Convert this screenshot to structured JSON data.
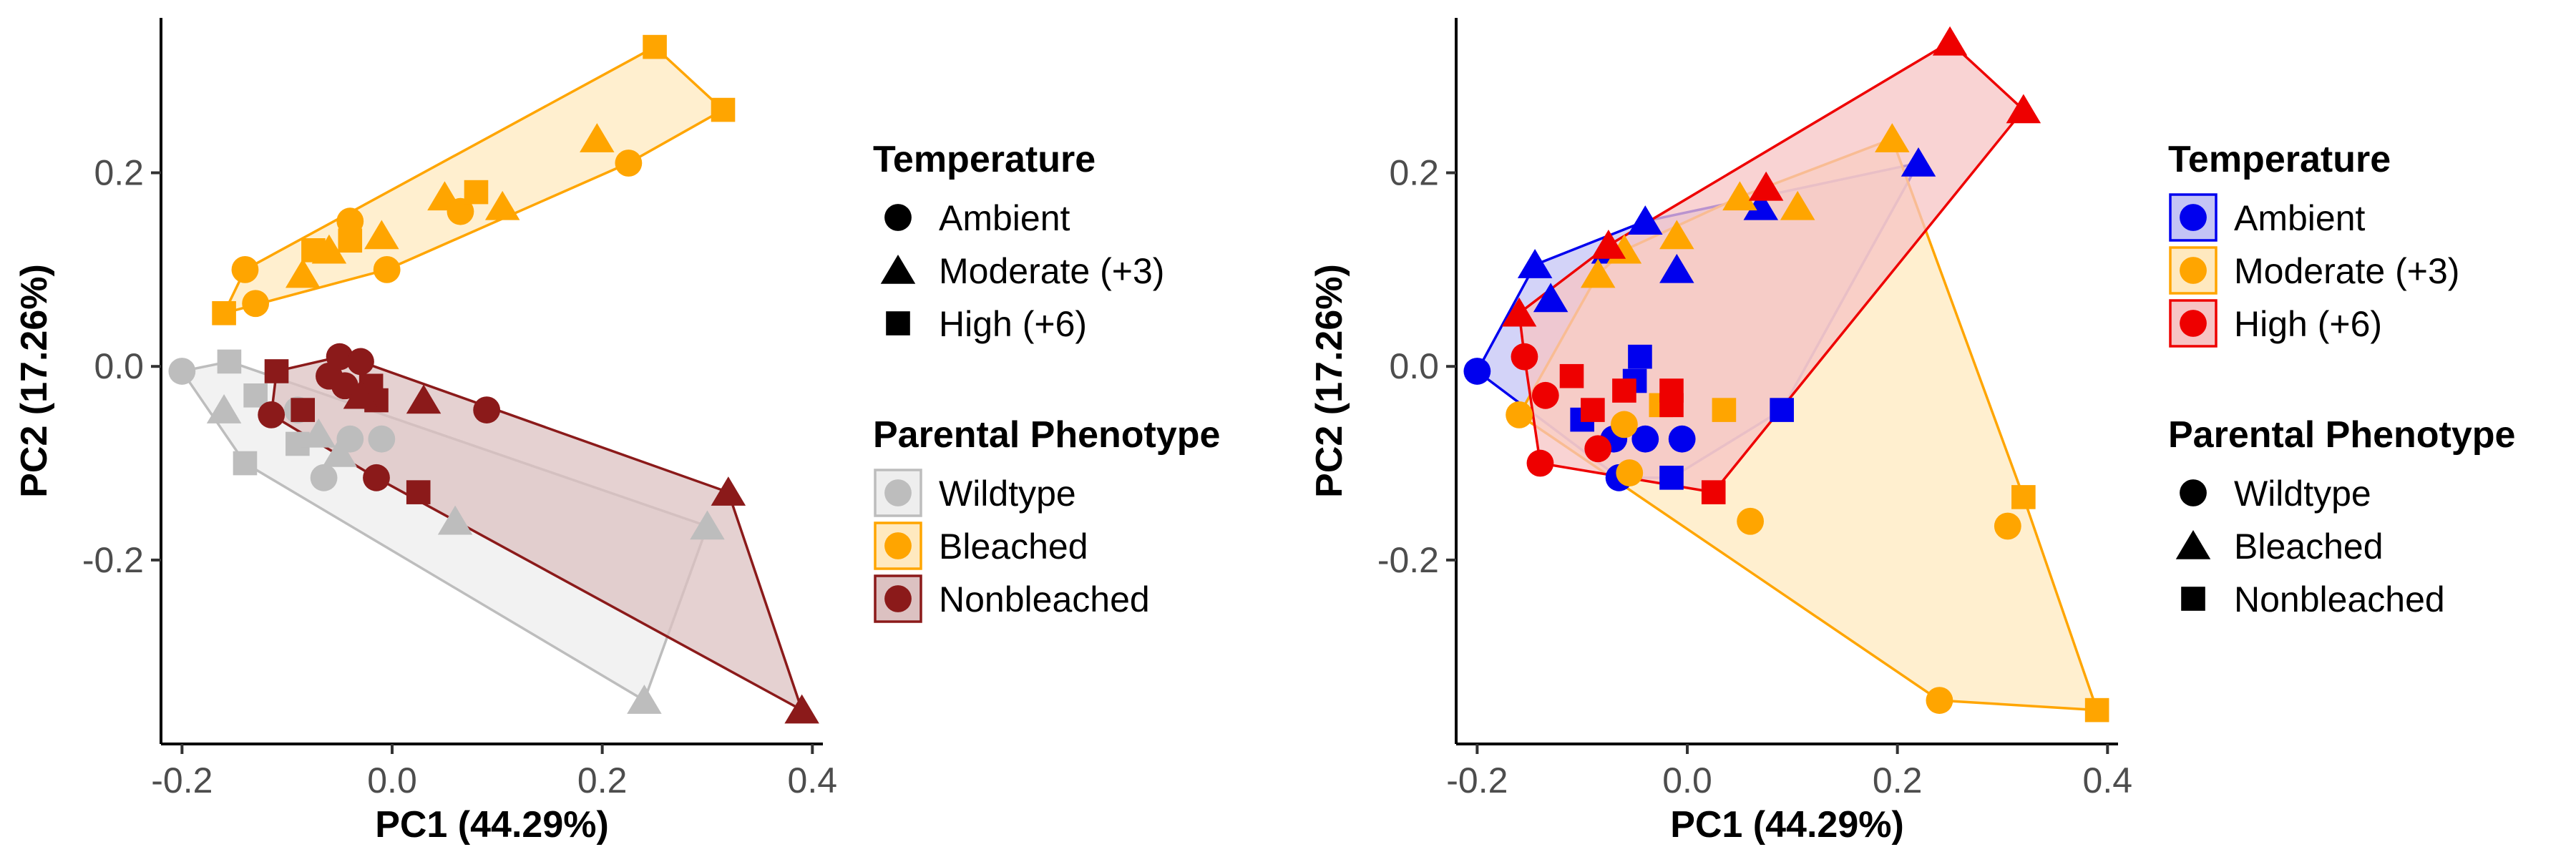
{
  "chart_data": [
    {
      "type": "scatter",
      "panel": "left",
      "xlabel": "PC1 (44.29%)",
      "ylabel": "PC2 (17.26%)",
      "xlim": [
        -0.22,
        0.41
      ],
      "ylim": [
        -0.39,
        0.36
      ],
      "xticks": [
        -0.2,
        0.0,
        0.2,
        0.4
      ],
      "xtick_labels": [
        "-0.2",
        "0.0",
        "0.2",
        "0.4"
      ],
      "yticks": [
        -0.2,
        0.0,
        0.2
      ],
      "ytick_labels": [
        "-0.2",
        "0.0",
        "0.2"
      ],
      "grid": false,
      "color_by": "Parental Phenotype",
      "shape_by": "Temperature",
      "hulls_by": "Parental Phenotype",
      "legends": [
        {
          "title": "Temperature",
          "kind": "shape",
          "entries": [
            {
              "label": "Ambient",
              "shape": "circle"
            },
            {
              "label": "Moderate (+3)",
              "shape": "triangle"
            },
            {
              "label": "High (+6)",
              "shape": "square"
            }
          ]
        },
        {
          "title": "Parental Phenotype",
          "kind": "color",
          "entries": [
            {
              "label": "Wildtype",
              "color": "#bdbdbd",
              "fill": "#eeeeee"
            },
            {
              "label": "Bleached",
              "color": "#ffa500",
              "fill": "#ffe9bf"
            },
            {
              "label": "Nonbleached",
              "color": "#8b1a1a",
              "fill": "#dcc1c1"
            }
          ]
        }
      ],
      "series": [
        {
          "name": "Wildtype",
          "color": "#bdbdbd",
          "fill": "#eeeeee",
          "points": [
            {
              "x": -0.2,
              "y": -0.005,
              "shape": "circle"
            },
            {
              "x": -0.155,
              "y": 0.005,
              "shape": "square"
            },
            {
              "x": -0.13,
              "y": -0.03,
              "shape": "square"
            },
            {
              "x": -0.16,
              "y": -0.045,
              "shape": "triangle"
            },
            {
              "x": -0.14,
              "y": -0.1,
              "shape": "square"
            },
            {
              "x": -0.09,
              "y": -0.08,
              "shape": "square"
            },
            {
              "x": -0.07,
              "y": -0.07,
              "shape": "triangle"
            },
            {
              "x": -0.05,
              "y": -0.09,
              "shape": "triangle"
            },
            {
              "x": -0.04,
              "y": -0.075,
              "shape": "circle"
            },
            {
              "x": -0.01,
              "y": -0.075,
              "shape": "circle"
            },
            {
              "x": -0.065,
              "y": -0.115,
              "shape": "circle"
            },
            {
              "x": -0.09,
              "y": -0.045,
              "shape": "circle"
            },
            {
              "x": 0.06,
              "y": -0.16,
              "shape": "triangle"
            },
            {
              "x": 0.3,
              "y": -0.165,
              "shape": "triangle"
            },
            {
              "x": 0.24,
              "y": -0.345,
              "shape": "triangle"
            }
          ]
        },
        {
          "name": "Bleached",
          "color": "#ffa500",
          "fill": "#ffe9bf",
          "points": [
            {
              "x": -0.16,
              "y": 0.055,
              "shape": "square"
            },
            {
              "x": -0.13,
              "y": 0.065,
              "shape": "circle"
            },
            {
              "x": -0.14,
              "y": 0.1,
              "shape": "circle"
            },
            {
              "x": -0.085,
              "y": 0.095,
              "shape": "triangle"
            },
            {
              "x": -0.075,
              "y": 0.12,
              "shape": "square"
            },
            {
              "x": -0.06,
              "y": 0.12,
              "shape": "triangle"
            },
            {
              "x": -0.04,
              "y": 0.15,
              "shape": "circle"
            },
            {
              "x": -0.04,
              "y": 0.13,
              "shape": "square"
            },
            {
              "x": -0.01,
              "y": 0.135,
              "shape": "triangle"
            },
            {
              "x": -0.005,
              "y": 0.1,
              "shape": "circle"
            },
            {
              "x": 0.05,
              "y": 0.175,
              "shape": "triangle"
            },
            {
              "x": 0.065,
              "y": 0.16,
              "shape": "circle"
            },
            {
              "x": 0.08,
              "y": 0.18,
              "shape": "square"
            },
            {
              "x": 0.105,
              "y": 0.165,
              "shape": "triangle"
            },
            {
              "x": 0.195,
              "y": 0.235,
              "shape": "triangle"
            },
            {
              "x": 0.225,
              "y": 0.21,
              "shape": "circle"
            },
            {
              "x": 0.25,
              "y": 0.33,
              "shape": "square"
            },
            {
              "x": 0.315,
              "y": 0.265,
              "shape": "square"
            }
          ]
        },
        {
          "name": "Nonbleached",
          "color": "#8b1a1a",
          "fill": "#dcc1c1",
          "points": [
            {
              "x": -0.11,
              "y": -0.005,
              "shape": "square"
            },
            {
              "x": -0.115,
              "y": -0.05,
              "shape": "circle"
            },
            {
              "x": -0.085,
              "y": -0.045,
              "shape": "square"
            },
            {
              "x": -0.06,
              "y": -0.01,
              "shape": "circle"
            },
            {
              "x": -0.05,
              "y": 0.01,
              "shape": "circle"
            },
            {
              "x": -0.03,
              "y": 0.005,
              "shape": "circle"
            },
            {
              "x": -0.045,
              "y": -0.02,
              "shape": "circle"
            },
            {
              "x": -0.02,
              "y": -0.02,
              "shape": "square"
            },
            {
              "x": -0.015,
              "y": -0.035,
              "shape": "square"
            },
            {
              "x": -0.03,
              "y": -0.03,
              "shape": "triangle"
            },
            {
              "x": 0.03,
              "y": -0.035,
              "shape": "triangle"
            },
            {
              "x": 0.09,
              "y": -0.045,
              "shape": "circle"
            },
            {
              "x": -0.015,
              "y": -0.115,
              "shape": "circle"
            },
            {
              "x": 0.025,
              "y": -0.13,
              "shape": "square"
            },
            {
              "x": 0.32,
              "y": -0.13,
              "shape": "triangle"
            },
            {
              "x": 0.39,
              "y": -0.355,
              "shape": "triangle"
            }
          ]
        }
      ]
    },
    {
      "type": "scatter",
      "panel": "right",
      "xlabel": "PC1 (44.29%)",
      "ylabel": "PC2 (17.26%)",
      "xlim": [
        -0.22,
        0.41
      ],
      "ylim": [
        -0.39,
        0.36
      ],
      "xticks": [
        -0.2,
        0.0,
        0.2,
        0.4
      ],
      "xtick_labels": [
        "-0.2",
        "0.0",
        "0.2",
        "0.4"
      ],
      "yticks": [
        -0.2,
        0.0,
        0.2
      ],
      "ytick_labels": [
        "-0.2",
        "0.0",
        "0.2"
      ],
      "grid": false,
      "color_by": "Temperature",
      "shape_by": "Parental Phenotype",
      "hulls_by": "Temperature",
      "legends": [
        {
          "title": "Temperature",
          "kind": "color",
          "entries": [
            {
              "label": "Ambient",
              "color": "#0000ee",
              "fill": "#c4c4f5"
            },
            {
              "label": "Moderate (+3)",
              "color": "#ffa500",
              "fill": "#ffe9bf"
            },
            {
              "label": "High (+6)",
              "color": "#ee0000",
              "fill": "#f7c4c4"
            }
          ]
        },
        {
          "title": "Parental Phenotype",
          "kind": "shape",
          "entries": [
            {
              "label": "Wildtype",
              "shape": "circle"
            },
            {
              "label": "Bleached",
              "shape": "triangle"
            },
            {
              "label": "Nonbleached",
              "shape": "square"
            }
          ]
        }
      ],
      "series": [
        {
          "name": "Ambient",
          "color": "#0000ee",
          "fill": "#c4c4f5",
          "points": [
            {
              "x": -0.2,
              "y": -0.005,
              "shape": "circle"
            },
            {
              "x": -0.145,
              "y": 0.105,
              "shape": "triangle"
            },
            {
              "x": -0.13,
              "y": 0.07,
              "shape": "triangle"
            },
            {
              "x": -0.075,
              "y": 0.12,
              "shape": "triangle"
            },
            {
              "x": -0.04,
              "y": 0.15,
              "shape": "triangle"
            },
            {
              "x": -0.01,
              "y": 0.1,
              "shape": "triangle"
            },
            {
              "x": 0.07,
              "y": 0.165,
              "shape": "triangle"
            },
            {
              "x": 0.22,
              "y": 0.21,
              "shape": "triangle"
            },
            {
              "x": -0.045,
              "y": 0.01,
              "shape": "square"
            },
            {
              "x": -0.05,
              "y": -0.015,
              "shape": "square"
            },
            {
              "x": -0.1,
              "y": -0.055,
              "shape": "square"
            },
            {
              "x": -0.07,
              "y": -0.075,
              "shape": "circle"
            },
            {
              "x": -0.04,
              "y": -0.075,
              "shape": "circle"
            },
            {
              "x": -0.005,
              "y": -0.075,
              "shape": "circle"
            },
            {
              "x": -0.065,
              "y": -0.115,
              "shape": "circle"
            },
            {
              "x": -0.015,
              "y": -0.115,
              "shape": "square"
            },
            {
              "x": 0.09,
              "y": -0.045,
              "shape": "square"
            }
          ]
        },
        {
          "name": "Moderate (+3)",
          "color": "#ffa500",
          "fill": "#ffe9bf",
          "points": [
            {
              "x": -0.16,
              "y": -0.05,
              "shape": "circle"
            },
            {
              "x": -0.085,
              "y": 0.095,
              "shape": "triangle"
            },
            {
              "x": -0.06,
              "y": 0.12,
              "shape": "triangle"
            },
            {
              "x": -0.01,
              "y": 0.135,
              "shape": "triangle"
            },
            {
              "x": 0.05,
              "y": 0.175,
              "shape": "triangle"
            },
            {
              "x": 0.105,
              "y": 0.165,
              "shape": "triangle"
            },
            {
              "x": 0.195,
              "y": 0.235,
              "shape": "triangle"
            },
            {
              "x": -0.06,
              "y": -0.06,
              "shape": "circle"
            },
            {
              "x": -0.055,
              "y": -0.11,
              "shape": "circle"
            },
            {
              "x": 0.035,
              "y": -0.045,
              "shape": "square"
            },
            {
              "x": -0.025,
              "y": -0.04,
              "shape": "square"
            },
            {
              "x": 0.06,
              "y": -0.16,
              "shape": "circle"
            },
            {
              "x": 0.305,
              "y": -0.165,
              "shape": "circle"
            },
            {
              "x": 0.32,
              "y": -0.135,
              "shape": "square"
            },
            {
              "x": 0.24,
              "y": -0.345,
              "shape": "circle"
            },
            {
              "x": 0.39,
              "y": -0.355,
              "shape": "square"
            }
          ]
        },
        {
          "name": "High (+6)",
          "color": "#ee0000",
          "fill": "#f7c4c4",
          "points": [
            {
              "x": -0.16,
              "y": 0.055,
              "shape": "triangle"
            },
            {
              "x": -0.155,
              "y": 0.01,
              "shape": "circle"
            },
            {
              "x": -0.135,
              "y": -0.03,
              "shape": "circle"
            },
            {
              "x": -0.14,
              "y": -0.1,
              "shape": "circle"
            },
            {
              "x": -0.11,
              "y": -0.01,
              "shape": "square"
            },
            {
              "x": -0.09,
              "y": -0.045,
              "shape": "square"
            },
            {
              "x": -0.085,
              "y": -0.085,
              "shape": "circle"
            },
            {
              "x": -0.075,
              "y": 0.125,
              "shape": "triangle"
            },
            {
              "x": -0.06,
              "y": -0.025,
              "shape": "square"
            },
            {
              "x": -0.015,
              "y": -0.025,
              "shape": "square"
            },
            {
              "x": -0.015,
              "y": -0.04,
              "shape": "square"
            },
            {
              "x": 0.025,
              "y": -0.13,
              "shape": "square"
            },
            {
              "x": 0.075,
              "y": 0.185,
              "shape": "triangle"
            },
            {
              "x": 0.25,
              "y": 0.335,
              "shape": "triangle"
            },
            {
              "x": 0.32,
              "y": 0.265,
              "shape": "triangle"
            }
          ]
        }
      ]
    }
  ]
}
